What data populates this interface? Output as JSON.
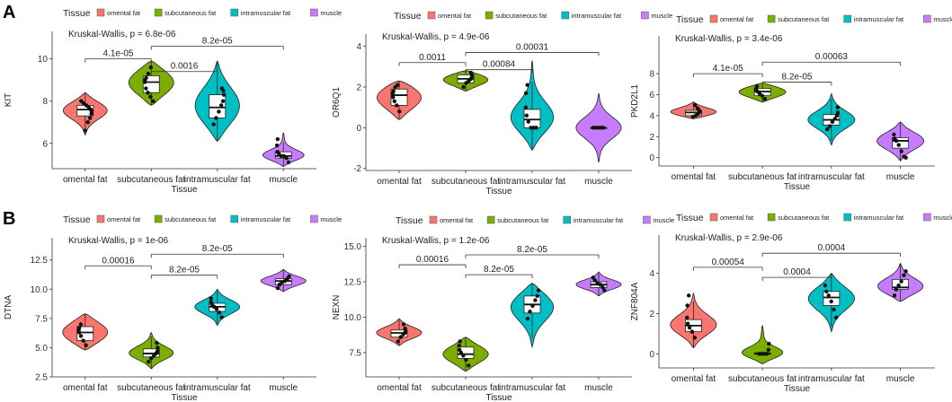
{
  "panel_labels": [
    "A",
    "B"
  ],
  "legend": {
    "title": "Tissue",
    "entries": [
      "omental fat",
      "subcutaneous fat",
      "intramuscular fat",
      "muscle"
    ]
  },
  "colors": {
    "omental fat": "#F8766D",
    "subcutaneous fat": "#7CAE00",
    "intramuscular fat": "#00BFC4",
    "muscle": "#C77CFF"
  },
  "chart_data": [
    {
      "type": "violin",
      "panel": "A",
      "ylabel": "KIT",
      "xlabel": "Tissue",
      "categories": [
        "omental fat",
        "subcutaneous fat",
        "intramuscular fat",
        "muscle"
      ],
      "ylim": [
        4.8,
        11.3
      ],
      "yticks": [
        6,
        8,
        10
      ],
      "ytick_labels": [
        "6",
        "8",
        "10"
      ],
      "stat_label": "Kruskal-Wallis, p = 6.8e-06",
      "comparisons": [
        {
          "from": 0,
          "to": 1,
          "y": 10.0,
          "label": "4.1e-05"
        },
        {
          "from": 1,
          "to": 3,
          "y": 10.6,
          "label": "8.2e-05"
        },
        {
          "from": 1,
          "to": 2,
          "y": 9.4,
          "label": "0.0016"
        }
      ],
      "series": [
        {
          "name": "omental fat",
          "min": 6.4,
          "max": 8.4,
          "q1": 7.3,
          "median": 7.6,
          "q3": 7.8,
          "points": [
            6.6,
            7.0,
            7.2,
            7.4,
            7.5,
            7.6,
            7.7,
            7.8,
            7.9,
            8.0
          ]
        },
        {
          "name": "subcutaneous fat",
          "min": 7.8,
          "max": 9.9,
          "q1": 8.4,
          "median": 8.9,
          "q3": 9.2,
          "points": [
            8.0,
            8.2,
            8.4,
            8.6,
            8.9,
            9.0,
            9.1,
            9.3,
            9.6
          ]
        },
        {
          "name": "intramuscular fat",
          "min": 6.1,
          "max": 9.9,
          "q1": 7.2,
          "median": 7.7,
          "q3": 8.3,
          "points": [
            6.9,
            7.2,
            7.5,
            7.8,
            8.0,
            8.3,
            8.5,
            8.6
          ]
        },
        {
          "name": "muscle",
          "min": 4.9,
          "max": 6.5,
          "q1": 5.3,
          "median": 5.4,
          "q3": 5.6,
          "points": [
            5.1,
            5.3,
            5.4,
            5.4,
            5.5,
            5.6,
            5.9,
            6.2
          ]
        }
      ]
    },
    {
      "type": "violin",
      "panel": "A",
      "ylabel": "OR6Q1",
      "xlabel": "Tissue",
      "categories": [
        "omental fat",
        "subcutaneous fat",
        "intramuscular fat",
        "muscle"
      ],
      "ylim": [
        -2.1,
        4.6
      ],
      "yticks": [
        -2,
        0,
        2,
        4
      ],
      "ytick_labels": [
        "-2",
        "0",
        "2",
        "4"
      ],
      "stat_label": "Kruskal-Wallis, p = 4.9e-06",
      "comparisons": [
        {
          "from": 0,
          "to": 1,
          "y": 3.2,
          "label": "0.0011"
        },
        {
          "from": 1,
          "to": 3,
          "y": 3.7,
          "label": "0.00031"
        },
        {
          "from": 1,
          "to": 2,
          "y": 2.85,
          "label": "0.00084"
        }
      ],
      "series": [
        {
          "name": "omental fat",
          "min": 0.4,
          "max": 2.3,
          "q1": 1.1,
          "median": 1.6,
          "q3": 1.9,
          "points": [
            0.8,
            1.1,
            1.3,
            1.5,
            1.7,
            1.8,
            2.0,
            2.1
          ]
        },
        {
          "name": "subcutaneous fat",
          "min": 1.8,
          "max": 2.8,
          "q1": 2.2,
          "median": 2.4,
          "q3": 2.6,
          "points": [
            2.0,
            2.2,
            2.3,
            2.4,
            2.5,
            2.6,
            2.7
          ]
        },
        {
          "name": "intramuscular fat",
          "min": -1.1,
          "max": 3.3,
          "q1": 0.0,
          "median": 0.4,
          "q3": 0.9,
          "points": [
            0.0,
            0.0,
            0.0,
            0.3,
            0.6,
            1.0,
            1.7,
            2.1
          ]
        },
        {
          "name": "muscle",
          "min": -1.7,
          "max": 1.7,
          "q1": 0.0,
          "median": 0.0,
          "q3": 0.0,
          "points": [
            0.0,
            0.0,
            0.0,
            0.0,
            0.0
          ]
        }
      ]
    },
    {
      "type": "violin",
      "panel": "A",
      "ylabel": "PKD2L1",
      "xlabel": "Tissue",
      "categories": [
        "omental fat",
        "subcutaneous fat",
        "intramuscular fat",
        "muscle"
      ],
      "ylim": [
        -0.8,
        11.6
      ],
      "yticks": [
        0,
        2,
        4,
        6,
        8
      ],
      "ytick_labels": [
        "0",
        "2",
        "4",
        "6",
        "8"
      ],
      "stat_label": "Kruskal-Wallis, p = 3.4e-06",
      "comparisons": [
        {
          "from": 0,
          "to": 1,
          "y": 8.0,
          "label": "4.1e-05"
        },
        {
          "from": 1,
          "to": 3,
          "y": 9.1,
          "label": "0.00063"
        },
        {
          "from": 1,
          "to": 2,
          "y": 7.2,
          "label": "8.2e-05"
        }
      ],
      "series": [
        {
          "name": "omental fat",
          "min": 3.7,
          "max": 5.3,
          "q1": 4.0,
          "median": 4.3,
          "q3": 4.5,
          "points": [
            3.9,
            4.0,
            4.2,
            4.3,
            4.4,
            4.5,
            4.7,
            5.0
          ]
        },
        {
          "name": "subcutaneous fat",
          "min": 5.3,
          "max": 7.1,
          "q1": 5.9,
          "median": 6.3,
          "q3": 6.6,
          "points": [
            5.6,
            5.9,
            6.1,
            6.3,
            6.4,
            6.6,
            6.8
          ]
        },
        {
          "name": "intramuscular fat",
          "min": 1.2,
          "max": 6.1,
          "q1": 3.1,
          "median": 3.6,
          "q3": 4.1,
          "points": [
            2.7,
            3.0,
            3.4,
            3.7,
            4.0,
            4.3,
            4.8
          ]
        },
        {
          "name": "muscle",
          "min": -0.3,
          "max": 3.4,
          "q1": 0.9,
          "median": 1.6,
          "q3": 1.9,
          "points": [
            0.0,
            0.1,
            0.6,
            1.2,
            1.6,
            1.8,
            2.2
          ]
        }
      ]
    },
    {
      "type": "violin",
      "panel": "B",
      "ylabel": "DTNA",
      "xlabel": "Tissue",
      "categories": [
        "omental fat",
        "subcutaneous fat",
        "intramuscular fat",
        "muscle"
      ],
      "ylim": [
        2.5,
        14.4
      ],
      "yticks": [
        2.5,
        5.0,
        7.5,
        10.0,
        12.5
      ],
      "ytick_labels": [
        "2.5",
        "5.0",
        "7.5",
        "10.0",
        "12.5"
      ],
      "stat_label": "Kruskal-Wallis, p = 1e-06",
      "comparisons": [
        {
          "from": 0,
          "to": 1,
          "y": 12.0,
          "label": "0.00016"
        },
        {
          "from": 1,
          "to": 3,
          "y": 13.0,
          "label": "8.2e-05"
        },
        {
          "from": 1,
          "to": 2,
          "y": 11.2,
          "label": "8.2e-05"
        }
      ],
      "series": [
        {
          "name": "omental fat",
          "min": 4.8,
          "max": 7.9,
          "q1": 5.6,
          "median": 6.3,
          "q3": 6.8,
          "points": [
            5.2,
            5.6,
            6.0,
            6.3,
            6.5,
            6.7,
            7.0
          ]
        },
        {
          "name": "subcutaneous fat",
          "min": 3.2,
          "max": 6.3,
          "q1": 4.2,
          "median": 4.5,
          "q3": 4.9,
          "points": [
            3.8,
            4.1,
            4.3,
            4.5,
            4.7,
            5.0,
            5.4
          ]
        },
        {
          "name": "intramuscular fat",
          "min": 6.9,
          "max": 10.0,
          "q1": 8.1,
          "median": 8.5,
          "q3": 8.8,
          "points": [
            7.6,
            8.0,
            8.3,
            8.5,
            8.7,
            8.9,
            9.2
          ]
        },
        {
          "name": "muscle",
          "min": 9.8,
          "max": 11.7,
          "q1": 10.4,
          "median": 10.7,
          "q3": 10.9,
          "points": [
            10.1,
            10.4,
            10.6,
            10.7,
            10.9,
            11.1
          ]
        }
      ]
    },
    {
      "type": "violin",
      "panel": "B",
      "ylabel": "NEXN",
      "xlabel": "Tissue",
      "categories": [
        "omental fat",
        "subcutaneous fat",
        "intramuscular fat",
        "muscle"
      ],
      "ylim": [
        5.8,
        15.6
      ],
      "yticks": [
        7.5,
        10.0,
        12.5,
        15.0
      ],
      "ytick_labels": [
        "7.5",
        "10.0",
        "12.5",
        "15.0"
      ],
      "stat_label": "Kruskal-Wallis, p = 1.2e-06",
      "comparisons": [
        {
          "from": 0,
          "to": 1,
          "y": 13.7,
          "label": "0.00016"
        },
        {
          "from": 1,
          "to": 3,
          "y": 14.4,
          "label": "8.2e-05"
        },
        {
          "from": 1,
          "to": 2,
          "y": 13.0,
          "label": "8.2e-05"
        }
      ],
      "series": [
        {
          "name": "omental fat",
          "min": 8.0,
          "max": 9.9,
          "q1": 8.6,
          "median": 8.9,
          "q3": 9.1,
          "points": [
            8.3,
            8.6,
            8.8,
            8.9,
            9.0,
            9.2,
            9.5
          ]
        },
        {
          "name": "subcutaneous fat",
          "min": 6.2,
          "max": 8.6,
          "q1": 7.1,
          "median": 7.4,
          "q3": 7.9,
          "points": [
            6.6,
            7.0,
            7.3,
            7.5,
            7.7,
            8.0,
            8.3
          ]
        },
        {
          "name": "intramuscular fat",
          "min": 7.9,
          "max": 12.4,
          "q1": 10.3,
          "median": 10.9,
          "q3": 11.5,
          "points": [
            9.9,
            10.4,
            10.8,
            11.2,
            11.5,
            11.9
          ]
        },
        {
          "name": "muscle",
          "min": 11.5,
          "max": 13.2,
          "q1": 12.1,
          "median": 12.3,
          "q3": 12.5,
          "points": [
            11.9,
            12.1,
            12.3,
            12.4,
            12.6,
            12.8
          ]
        }
      ]
    },
    {
      "type": "violin",
      "panel": "B",
      "ylabel": "ZNF804A",
      "xlabel": "Tissue",
      "categories": [
        "omental fat",
        "subcutaneous fat",
        "intramuscular fat",
        "muscle"
      ],
      "ylim": [
        -0.7,
        5.9
      ],
      "yticks": [
        0,
        2,
        4
      ],
      "ytick_labels": [
        "0",
        "2",
        "4"
      ],
      "stat_label": "Kruskal-Wallis, p = 2.9e-06",
      "comparisons": [
        {
          "from": 0,
          "to": 1,
          "y": 4.3,
          "label": "0.00054"
        },
        {
          "from": 1,
          "to": 3,
          "y": 5.0,
          "label": "0.0004"
        },
        {
          "from": 1,
          "to": 2,
          "y": 3.8,
          "label": "0.0004"
        }
      ],
      "series": [
        {
          "name": "omental fat",
          "min": 0.3,
          "max": 3.0,
          "q1": 1.1,
          "median": 1.4,
          "q3": 1.7,
          "points": [
            0.8,
            1.1,
            1.3,
            1.5,
            1.8,
            2.4,
            2.9
          ]
        },
        {
          "name": "subcutaneous fat",
          "min": -0.5,
          "max": 1.4,
          "q1": 0.0,
          "median": 0.0,
          "q3": 0.05,
          "points": [
            0.0,
            0.0,
            0.0,
            0.0,
            0.2,
            0.5
          ]
        },
        {
          "name": "intramuscular fat",
          "min": 1.1,
          "max": 4.0,
          "q1": 2.4,
          "median": 2.8,
          "q3": 3.1,
          "points": [
            1.8,
            2.2,
            2.6,
            2.9,
            3.1,
            3.4
          ]
        },
        {
          "name": "muscle",
          "min": 2.6,
          "max": 4.5,
          "q1": 3.2,
          "median": 3.3,
          "q3": 3.7,
          "points": [
            2.9,
            3.2,
            3.4,
            3.6,
            3.9,
            4.1
          ]
        }
      ]
    }
  ]
}
